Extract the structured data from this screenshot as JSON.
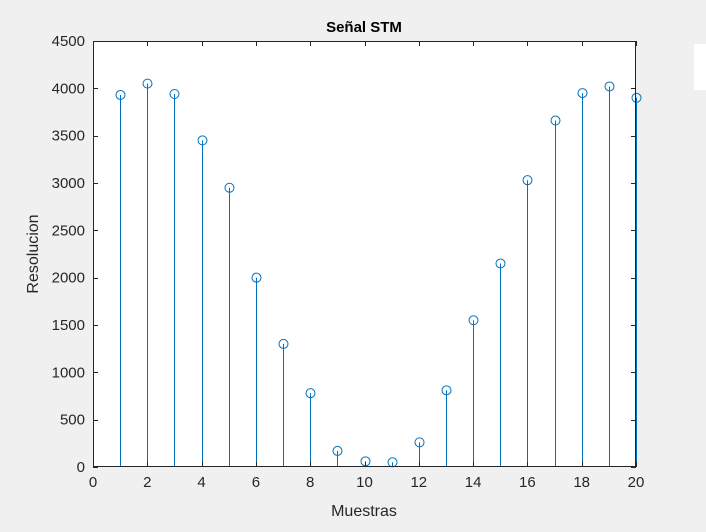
{
  "chart_data": {
    "type": "stem",
    "title": "Señal STM",
    "xlabel": "Muestras",
    "ylabel": "Resolucion",
    "xlim": [
      0,
      20
    ],
    "ylim": [
      0,
      4500
    ],
    "xticks": [
      0,
      2,
      4,
      6,
      8,
      10,
      12,
      14,
      16,
      18,
      20
    ],
    "yticks": [
      0,
      500,
      1000,
      1500,
      2000,
      2500,
      3000,
      3500,
      4000,
      4500
    ],
    "grid": false,
    "legend": false,
    "series": [
      {
        "x": [
          1,
          2,
          3,
          4,
          5,
          6,
          7,
          8,
          9,
          10,
          11,
          12,
          13,
          14,
          15,
          16,
          17,
          18,
          19,
          20
        ],
        "values": [
          3930,
          4050,
          3940,
          3450,
          2950,
          2000,
          1300,
          780,
          170,
          60,
          50,
          260,
          810,
          1550,
          2150,
          3030,
          3660,
          3950,
          4020,
          3900
        ],
        "color": "#0072bd"
      }
    ]
  },
  "figure": {
    "background": "#f0f0f0",
    "axes_background": "#ffffff",
    "axis_color": "#262626"
  }
}
